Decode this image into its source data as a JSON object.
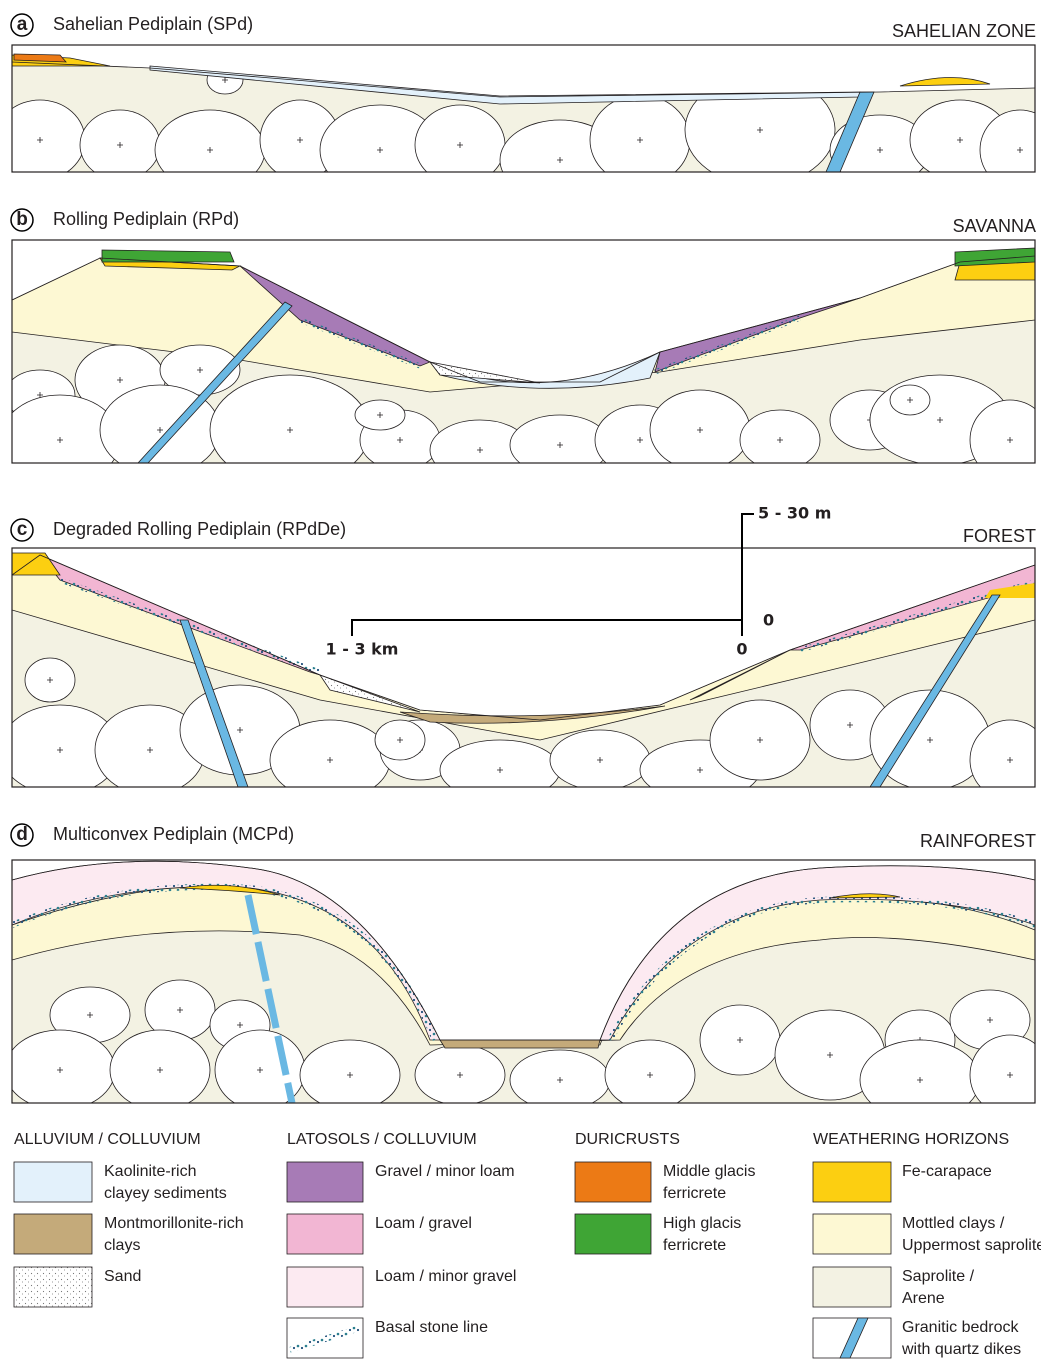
{
  "panels": [
    {
      "letter": "a",
      "title": "Sahelian Pediplain (SPd)",
      "zone": "SAHELIAN ZONE"
    },
    {
      "letter": "b",
      "title": "Rolling Pediplain (RPd)",
      "zone": "SAVANNA"
    },
    {
      "letter": "c",
      "title": "Degraded Rolling Pediplain (RPdDe)",
      "zone": "FOREST"
    },
    {
      "letter": "d",
      "title": "Multiconvex Pediplain (MCPd)",
      "zone": "RAINFOREST"
    }
  ],
  "scale": {
    "vertical": "5 - 30 m",
    "vertical_zero": "0",
    "horizontal": "1 - 3 km",
    "horizontal_zero": "0"
  },
  "legend": {
    "groups": [
      {
        "heading": "ALLUVIUM / COLLUVIUM",
        "items": [
          {
            "lines": [
              "Kaolinite-rich",
              "clayey sediments"
            ]
          },
          {
            "lines": [
              "Montmorillonite-rich",
              "clays"
            ]
          },
          {
            "lines": [
              "Sand"
            ]
          }
        ]
      },
      {
        "heading": "LATOSOLS / COLLUVIUM",
        "items": [
          {
            "lines": [
              "Gravel / minor loam"
            ]
          },
          {
            "lines": [
              "Loam / gravel"
            ]
          },
          {
            "lines": [
              "Loam / minor gravel"
            ]
          },
          {
            "lines": [
              "Basal stone line"
            ]
          }
        ]
      },
      {
        "heading": "DURICRUSTS",
        "items": [
          {
            "lines": [
              "Middle glacis",
              "ferricrete"
            ]
          },
          {
            "lines": [
              "High glacis",
              "ferricrete"
            ]
          }
        ]
      },
      {
        "heading": "WEATHERING HORIZONS",
        "items": [
          {
            "lines": [
              "Fe-carapace"
            ]
          },
          {
            "lines": [
              "Mottled clays /",
              "Uppermost saprolite"
            ]
          },
          {
            "lines": [
              "Saprolite /",
              "Arene"
            ]
          },
          {
            "lines": [
              "Granitic bedrock",
              "with quartz dikes"
            ]
          }
        ]
      }
    ]
  }
}
